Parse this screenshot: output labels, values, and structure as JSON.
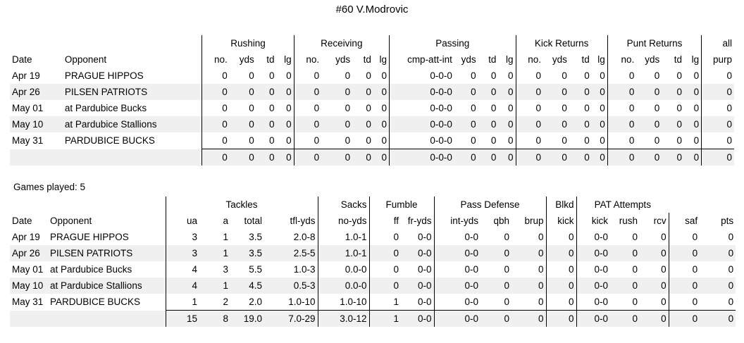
{
  "title": "#60 V.Modrovic",
  "offense": {
    "groups": [
      "Rushing",
      "Receiving",
      "Passing",
      "Kick Returns",
      "Punt Returns",
      "all"
    ],
    "columns": [
      "Date",
      "Opponent",
      "no.",
      "yds",
      "td",
      "lg",
      "no.",
      "yds",
      "td",
      "lg",
      "cmp-att-int",
      "yds",
      "td",
      "lg",
      "no.",
      "yds",
      "td",
      "lg",
      "no.",
      "yds",
      "td",
      "lg",
      "purp"
    ],
    "rows": [
      [
        "Apr 19",
        "PRAGUE HIPPOS",
        "0",
        "0",
        "0",
        "0",
        "0",
        "0",
        "0",
        "0",
        "0-0-0",
        "0",
        "0",
        "0",
        "0",
        "0",
        "0",
        "0",
        "0",
        "0",
        "0",
        "0",
        "0"
      ],
      [
        "Apr 26",
        "PILSEN PATRIOTS",
        "0",
        "0",
        "0",
        "0",
        "0",
        "0",
        "0",
        "0",
        "0-0-0",
        "0",
        "0",
        "0",
        "0",
        "0",
        "0",
        "0",
        "0",
        "0",
        "0",
        "0",
        "0"
      ],
      [
        "May 01",
        "at Pardubice Bucks",
        "0",
        "0",
        "0",
        "0",
        "0",
        "0",
        "0",
        "0",
        "0-0-0",
        "0",
        "0",
        "0",
        "0",
        "0",
        "0",
        "0",
        "0",
        "0",
        "0",
        "0",
        "0"
      ],
      [
        "May 10",
        "at Pardubice Stallions",
        "0",
        "0",
        "0",
        "0",
        "0",
        "0",
        "0",
        "0",
        "0-0-0",
        "0",
        "0",
        "0",
        "0",
        "0",
        "0",
        "0",
        "0",
        "0",
        "0",
        "0",
        "0"
      ],
      [
        "May 31",
        "PARDUBICE BUCKS",
        "0",
        "0",
        "0",
        "0",
        "0",
        "0",
        "0",
        "0",
        "0-0-0",
        "0",
        "0",
        "0",
        "0",
        "0",
        "0",
        "0",
        "0",
        "0",
        "0",
        "0",
        "0"
      ]
    ],
    "totals": [
      "",
      "",
      "0",
      "0",
      "0",
      "0",
      "0",
      "0",
      "0",
      "0",
      "0-0-0",
      "0",
      "0",
      "0",
      "0",
      "0",
      "0",
      "0",
      "0",
      "0",
      "0",
      "0",
      "0"
    ]
  },
  "games_played": "Games played: 5",
  "defense": {
    "groups": [
      "Tackles",
      "Sacks",
      "Fumble",
      "Pass Defense",
      "Blkd",
      "PAT Attempts"
    ],
    "columns": [
      "Date",
      "Opponent",
      "ua",
      "a",
      "total",
      "tfl-yds",
      "no-yds",
      "ff",
      "fr-yds",
      "int-yds",
      "qbh",
      "brup",
      "kick",
      "kick",
      "rush",
      "rcv",
      "saf",
      "pts"
    ],
    "rows": [
      [
        "Apr 19",
        "PRAGUE HIPPOS",
        "3",
        "1",
        "3.5",
        "2.0-8",
        "1.0-1",
        "0",
        "0-0",
        "0-0",
        "0",
        "0",
        "0",
        "0-0",
        "0",
        "0",
        "0",
        "0"
      ],
      [
        "Apr 26",
        "PILSEN PATRIOTS",
        "3",
        "1",
        "3.5",
        "2.5-5",
        "1.0-1",
        "0",
        "0-0",
        "0-0",
        "0",
        "0",
        "0",
        "0-0",
        "0",
        "0",
        "0",
        "0"
      ],
      [
        "May 01",
        "at Pardubice Bucks",
        "4",
        "3",
        "5.5",
        "1.0-3",
        "0.0-0",
        "0",
        "0-0",
        "0-0",
        "0",
        "0",
        "0",
        "0-0",
        "0",
        "0",
        "0",
        "0"
      ],
      [
        "May 10",
        "at Pardubice Stallions",
        "4",
        "1",
        "4.5",
        "0.5-3",
        "0.0-0",
        "0",
        "0-0",
        "0-0",
        "0",
        "0",
        "0",
        "0-0",
        "0",
        "0",
        "0",
        "0"
      ],
      [
        "May 31",
        "PARDUBICE BUCKS",
        "1",
        "2",
        "2.0",
        "1.0-10",
        "1.0-10",
        "1",
        "0-0",
        "0-0",
        "0",
        "0",
        "0",
        "0-0",
        "0",
        "0",
        "0",
        "0"
      ]
    ],
    "totals": [
      "",
      "",
      "15",
      "8",
      "19.0",
      "7.0-29",
      "3.0-12",
      "1",
      "0-0",
      "0-0",
      "0",
      "0",
      "0",
      "0-0",
      "0",
      "0",
      "0",
      "0"
    ]
  }
}
